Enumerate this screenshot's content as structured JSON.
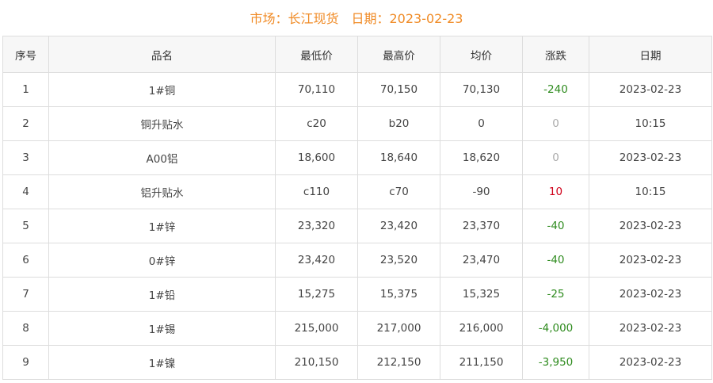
{
  "header": {
    "market": "市场：长江现货",
    "date": "日期：2023-02-23"
  },
  "columns": [
    "序号",
    "品名",
    "最低价",
    "最高价",
    "均价",
    "涨跌",
    "日期"
  ],
  "rows": [
    [
      "1",
      "1#铜",
      "70,110",
      "70,150",
      "70,130",
      "-240",
      "2023-02-23"
    ],
    [
      "2",
      "铜升贴水",
      "c20",
      "b20",
      "0",
      "0",
      "10:15"
    ],
    [
      "3",
      "A00铝",
      "18,600",
      "18,640",
      "18,620",
      "0",
      "2023-02-23"
    ],
    [
      "4",
      "铝升贴水",
      "c110",
      "c70",
      "-90",
      "10",
      "10:15"
    ],
    [
      "5",
      "1#锌",
      "23,320",
      "23,420",
      "23,370",
      "-40",
      "2023-02-23"
    ],
    [
      "6",
      "0#锌",
      "23,420",
      "23,520",
      "23,470",
      "-40",
      "2023-02-23"
    ],
    [
      "7",
      "1#铅",
      "15,275",
      "15,375",
      "15,325",
      "-25",
      "2023-02-23"
    ],
    [
      "8",
      "1#锡",
      "215,000",
      "217,000",
      "216,000",
      "-4,000",
      "2023-02-23"
    ],
    [
      "9",
      "1#镍",
      "210,150",
      "212,150",
      "211,150",
      "-3,950",
      "2023-02-23"
    ]
  ],
  "colors": {
    "title": "#f08a24",
    "down": "#2e8b1e",
    "up": "#d0021b",
    "flat": "#aaaaaa"
  }
}
